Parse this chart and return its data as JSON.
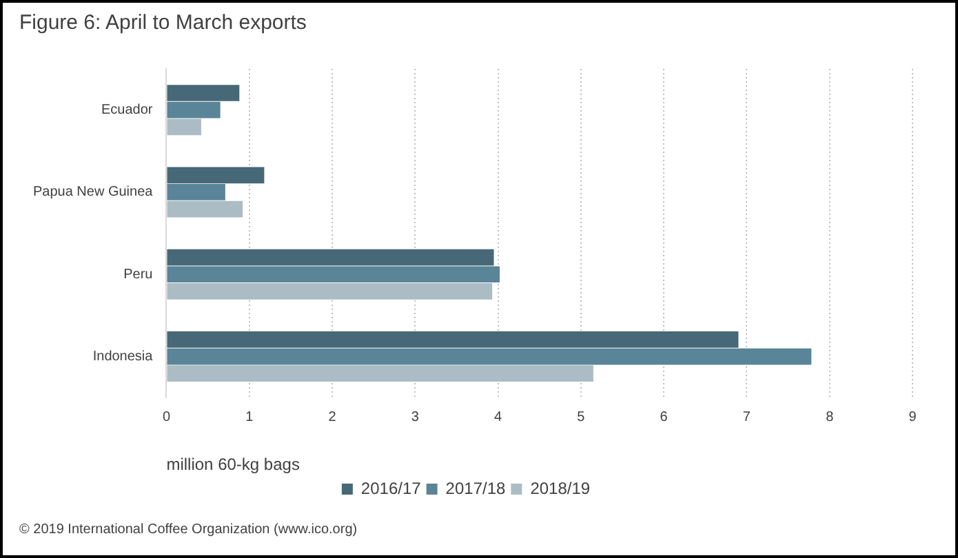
{
  "chart_data": {
    "type": "bar",
    "orientation": "horizontal",
    "title": "Figure 6: April to March exports",
    "xlabel": "million 60-kg bags",
    "categories": [
      "Ecuador",
      "Papua New Guinea",
      "Peru",
      "Indonesia"
    ],
    "series": [
      {
        "name": "2016/17",
        "color": "#476877",
        "values": [
          0.88,
          1.18,
          3.95,
          6.9
        ]
      },
      {
        "name": "2017/18",
        "color": "#5a8497",
        "values": [
          0.65,
          0.71,
          4.02,
          7.78
        ]
      },
      {
        "name": "2018/19",
        "color": "#abbcc4",
        "values": [
          0.42,
          0.92,
          3.93,
          5.15
        ]
      }
    ],
    "xlim": [
      0,
      9
    ],
    "xticks": [
      0,
      1,
      2,
      3,
      4,
      5,
      6,
      7,
      8,
      9
    ],
    "grid": "x",
    "legend": "bottom",
    "annotations": [
      "© 2019 International Coffee Organization (www.ico.org)"
    ]
  }
}
